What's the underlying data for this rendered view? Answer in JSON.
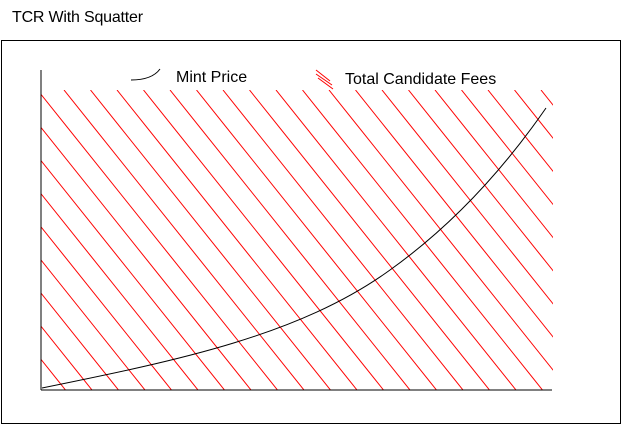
{
  "title": "TCR With Squatter",
  "legend": {
    "mint_price_label": "Mint Price",
    "total_candidate_fees_label": "Total Candidate Fees"
  },
  "colors": {
    "mint_price_curve": "#000000",
    "candidate_fees_hatch": "#ff0000",
    "axes": "#000000",
    "frame": "#000000"
  }
}
